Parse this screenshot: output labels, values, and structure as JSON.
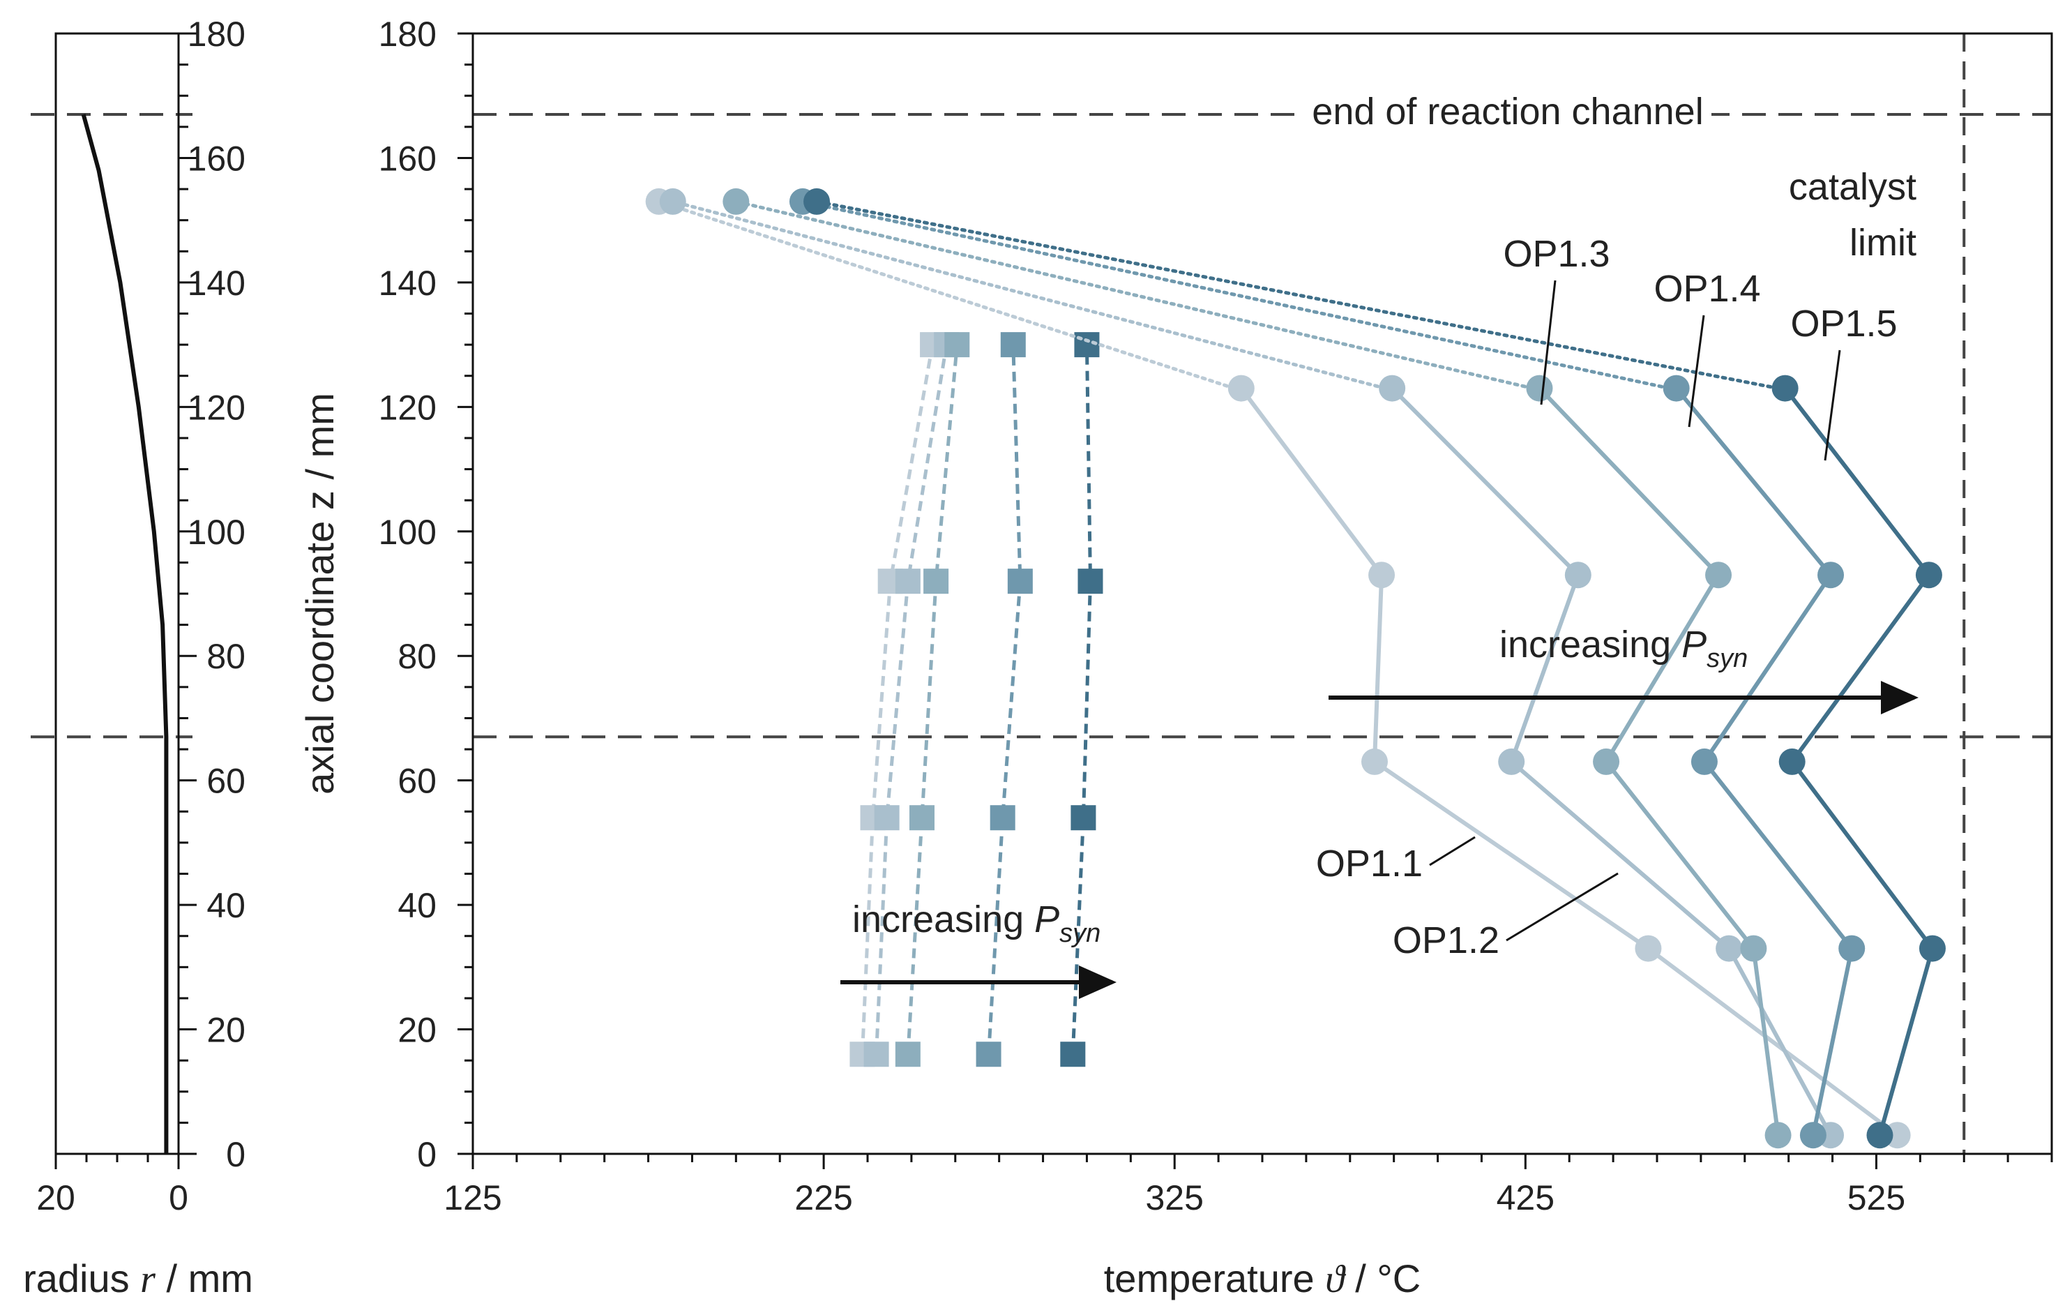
{
  "chart_data": [
    {
      "type": "line",
      "name": "radius-profile",
      "xlabel": "radius r / mm",
      "xlabel_prefix": "radius ",
      "xlabel_symbol": "r",
      "xlabel_suffix": " / mm",
      "xlim": [
        20,
        0
      ],
      "ylim": [
        0,
        180
      ],
      "xticks": [
        20,
        0
      ],
      "xtick_labels": [
        "20",
        "0"
      ],
      "yticks": [
        0,
        20,
        40,
        60,
        80,
        100,
        120,
        140,
        160,
        180
      ],
      "ytick_labels": [
        "0",
        "20",
        "40",
        "60",
        "80",
        "100",
        "120",
        "140",
        "160",
        "180"
      ],
      "ylabel": "axial coordinate z / mm",
      "reference_lines_z": [
        167,
        67
      ],
      "series": [
        {
          "name": "radius",
          "color": "#111111",
          "points": [
            [
              2.0,
              0
            ],
            [
              2.0,
              40
            ],
            [
              2.0,
              67
            ],
            [
              2.6,
              85
            ],
            [
              4.0,
              100
            ],
            [
              6.5,
              120
            ],
            [
              9.5,
              140
            ],
            [
              13.0,
              158
            ],
            [
              15.5,
              167
            ]
          ]
        }
      ]
    },
    {
      "type": "line",
      "name": "temperature-profiles",
      "xlabel": "temperature ϑ / °C",
      "xlabel_prefix": "temperature ",
      "xlabel_symbol": "ϑ",
      "xlabel_suffix": " / °C",
      "ylabel": "axial coordinate z / mm",
      "xlim": [
        125,
        575
      ],
      "ylim": [
        0,
        180
      ],
      "xticks": [
        125,
        225,
        325,
        425,
        525
      ],
      "xtick_labels": [
        "125",
        "225",
        "325",
        "425",
        "525"
      ],
      "yticks": [
        0,
        20,
        40,
        60,
        80,
        100,
        120,
        140,
        160,
        180
      ],
      "ytick_labels": [
        "0",
        "20",
        "40",
        "60",
        "80",
        "100",
        "120",
        "140",
        "160",
        "180"
      ],
      "reference_lines_z": [
        167,
        67
      ],
      "catalyst_limit_x": 550,
      "annotations": {
        "end_channel": "end of reaction channel",
        "catalyst_line1": "catalyst",
        "catalyst_line2": "limit",
        "increasing_left_prefix": "increasing ",
        "increasing_right_prefix": "increasing ",
        "p_symbol": "P",
        "p_subscript": "syn"
      },
      "series": [
        {
          "name": "OP1.1",
          "color": "#bccbd6",
          "reactor": [
            [
              531,
              3
            ],
            [
              460,
              33
            ],
            [
              382,
              63
            ],
            [
              384,
              93
            ],
            [
              344,
              123
            ]
          ],
          "gas_inlet": [
            [
              342,
              123
            ],
            [
              178,
              153
            ]
          ],
          "coolant": [
            [
              236,
              16
            ],
            [
              239,
              54
            ],
            [
              244,
              92
            ],
            [
              256,
              130
            ]
          ]
        },
        {
          "name": "OP1.2",
          "color": "#a9bfcd",
          "reactor": [
            [
              512,
              3
            ],
            [
              483,
              33
            ],
            [
              421,
              63
            ],
            [
              440,
              93
            ],
            [
              387,
              123
            ]
          ],
          "gas_inlet": [
            [
              385,
              123
            ],
            [
              182,
              153
            ]
          ],
          "coolant": [
            [
              240,
              16
            ],
            [
              243,
              54
            ],
            [
              249,
              92
            ],
            [
              260,
              130
            ]
          ]
        },
        {
          "name": "OP1.3",
          "color": "#8daebd",
          "reactor": [
            [
              497,
              3
            ],
            [
              490,
              33
            ],
            [
              448,
              63
            ],
            [
              480,
              93
            ],
            [
              429,
              123
            ]
          ],
          "gas_inlet": [
            [
              427,
              123
            ],
            [
              200,
              153
            ]
          ],
          "coolant": [
            [
              249,
              16
            ],
            [
              253,
              54
            ],
            [
              257,
              92
            ],
            [
              263,
              130
            ]
          ]
        },
        {
          "name": "OP1.4",
          "color": "#6f98ad",
          "reactor": [
            [
              507,
              3
            ],
            [
              518,
              33
            ],
            [
              476,
              63
            ],
            [
              512,
              93
            ],
            [
              468,
              123
            ]
          ],
          "gas_inlet": [
            [
              466,
              123
            ],
            [
              219,
              153
            ]
          ],
          "coolant": [
            [
              272,
              16
            ],
            [
              276,
              54
            ],
            [
              281,
              92
            ],
            [
              279,
              130
            ]
          ]
        },
        {
          "name": "OP1.5",
          "color": "#3f6f89",
          "reactor": [
            [
              526,
              3
            ],
            [
              541,
              33
            ],
            [
              501,
              63
            ],
            [
              540,
              93
            ],
            [
              499,
              123
            ]
          ],
          "gas_inlet": [
            [
              497,
              123
            ],
            [
              223,
              153
            ]
          ],
          "coolant": [
            [
              296,
              16
            ],
            [
              299,
              54
            ],
            [
              301,
              92
            ],
            [
              300,
              130
            ]
          ]
        }
      ]
    }
  ]
}
